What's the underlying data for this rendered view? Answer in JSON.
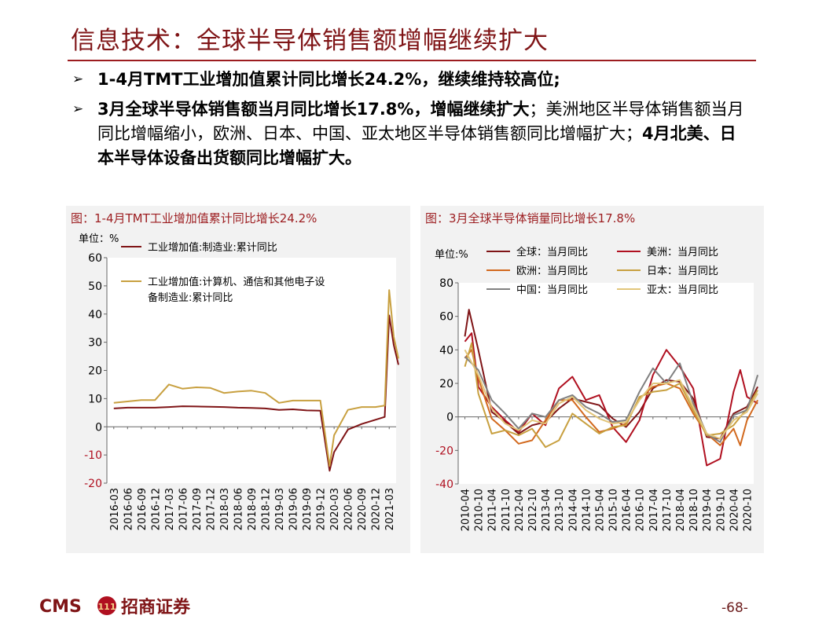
{
  "header": {
    "title": "信息技术：全球半导体销售额增幅继续扩大"
  },
  "bullets": [
    {
      "arrow": "➢",
      "bold1": "1-4月TMT工业增加值累计同比增长24.2%，继续维持较高位;"
    },
    {
      "arrow": "➢",
      "bold1": "3月全球半导体销售额当月同比增长17.8%，增幅继续扩大",
      "normal1": "；美洲地区半导体销售额当月同比增幅缩小，欧洲、日本、中国、亚太地区半导体销售额同比增幅扩大；",
      "bold2": "4月北美、日本半导体设备出货额同比增幅扩大。"
    }
  ],
  "footer": {
    "logo_text": "CMS",
    "logo_mark": "111",
    "company": "招商证券",
    "page": "-68-"
  },
  "colors": {
    "dark_red": "#7f1416",
    "accent_red": "#9c1c1f",
    "gold": "#c8a040",
    "orange": "#d2691e",
    "gray": "#808080",
    "light_gold": "#e2c57a"
  },
  "chart_data": [
    {
      "type": "line",
      "title": "图：1-4月TMT工业增加值累计同比增长24.2%",
      "unit_label": "单位：%",
      "ylim": [
        -20,
        60
      ],
      "yticks": [
        -20,
        -10,
        0,
        10,
        20,
        30,
        40,
        50,
        60
      ],
      "x_tick_labels": [
        "2016-03",
        "2016-06",
        "2016-09",
        "2016-12",
        "2017-03",
        "2017-06",
        "2017-09",
        "2017-12",
        "2018-03",
        "2018-06",
        "2018-09",
        "2018-12",
        "2019-03",
        "2019-06",
        "2019-09",
        "2019-12",
        "2020-03",
        "2020-06",
        "2020-09",
        "2020-12",
        "2021-03"
      ],
      "legend_placement": "top-left",
      "series": [
        {
          "name": "工业增加值:制造业:累计同比",
          "color": "#7f1416",
          "points": [
            [
              0,
              6.5
            ],
            [
              1,
              6.8
            ],
            [
              2,
              6.8
            ],
            [
              3,
              6.8
            ],
            [
              4,
              7.0
            ],
            [
              5,
              7.3
            ],
            [
              6,
              7.2
            ],
            [
              7,
              7.1
            ],
            [
              8,
              7.0
            ],
            [
              9,
              6.8
            ],
            [
              10,
              6.7
            ],
            [
              11,
              6.5
            ],
            [
              12,
              6.0
            ],
            [
              13,
              6.2
            ],
            [
              14,
              5.8
            ],
            [
              15,
              5.7
            ],
            [
              15.67,
              -15.6
            ],
            [
              16,
              -9.0
            ],
            [
              17,
              -1.0
            ],
            [
              18,
              1.0
            ],
            [
              19,
              2.5
            ],
            [
              19.67,
              3.5
            ],
            [
              20,
              39.5
            ],
            [
              20.33,
              29.0
            ],
            [
              20.67,
              22.0
            ]
          ]
        },
        {
          "name": "工业增加值:计算机、通信和其他电子设备制造业:累计同比",
          "color": "#c8a040",
          "points": [
            [
              0,
              8.5
            ],
            [
              1,
              9.0
            ],
            [
              2,
              9.5
            ],
            [
              3,
              9.5
            ],
            [
              4,
              15.0
            ],
            [
              5,
              13.5
            ],
            [
              6,
              14.0
            ],
            [
              7,
              13.8
            ],
            [
              8,
              12.0
            ],
            [
              9,
              12.5
            ],
            [
              10,
              12.8
            ],
            [
              11,
              12.0
            ],
            [
              12,
              8.5
            ],
            [
              13,
              9.3
            ],
            [
              14,
              9.3
            ],
            [
              15,
              9.3
            ],
            [
              15.67,
              -13.9
            ],
            [
              16,
              -3.0
            ],
            [
              17,
              6.0
            ],
            [
              18,
              7.0
            ],
            [
              19,
              7.0
            ],
            [
              19.67,
              7.5
            ],
            [
              20,
              48.5
            ],
            [
              20.33,
              32.0
            ],
            [
              20.67,
              24.2
            ]
          ]
        }
      ]
    },
    {
      "type": "line",
      "title": "图：3月全球半导体销量同比增长17.8%",
      "unit_label": "单位:%",
      "ylim": [
        -40,
        80
      ],
      "yticks": [
        -40,
        -20,
        0,
        20,
        40,
        60,
        80
      ],
      "x_tick_labels": [
        "2010-04",
        "2010-10",
        "2011-04",
        "2011-10",
        "2012-04",
        "2012-10",
        "2013-04",
        "2013-10",
        "2014-04",
        "2014-10",
        "2015-04",
        "2015-10",
        "2016-04",
        "2016-10",
        "2017-04",
        "2017-10",
        "2018-04",
        "2018-10",
        "2019-04",
        "2019-10",
        "2020-04",
        "2020-10"
      ],
      "legend_placement": "top",
      "series": [
        {
          "name": "全球：当月同比",
          "color": "#7f1416",
          "points": [
            [
              0,
              48
            ],
            [
              0.3,
              64
            ],
            [
              1,
              40
            ],
            [
              2,
              3
            ],
            [
              3,
              -3
            ],
            [
              4,
              -10
            ],
            [
              5,
              -5
            ],
            [
              6,
              -3
            ],
            [
              7,
              5
            ],
            [
              8,
              11
            ],
            [
              9,
              9
            ],
            [
              10,
              7
            ],
            [
              11,
              -1
            ],
            [
              12,
              -6
            ],
            [
              13,
              3
            ],
            [
              14,
              17
            ],
            [
              15,
              22
            ],
            [
              16,
              21
            ],
            [
              17,
              11
            ],
            [
              18,
              -12
            ],
            [
              19,
              -13
            ],
            [
              20,
              2
            ],
            [
              21,
              6
            ],
            [
              21.8,
              18
            ]
          ]
        },
        {
          "name": "美洲：当月同比",
          "color": "#b01020",
          "points": [
            [
              0,
              45
            ],
            [
              0.5,
              50
            ],
            [
              1,
              18
            ],
            [
              2,
              6
            ],
            [
              3,
              -2
            ],
            [
              4,
              -9
            ],
            [
              5,
              2
            ],
            [
              6,
              -5
            ],
            [
              7,
              17
            ],
            [
              8,
              24
            ],
            [
              9,
              10
            ],
            [
              10,
              13
            ],
            [
              11,
              -6
            ],
            [
              12,
              -15
            ],
            [
              13,
              -2
            ],
            [
              14,
              25
            ],
            [
              15,
              40
            ],
            [
              16,
              30
            ],
            [
              17,
              17
            ],
            [
              18,
              -29
            ],
            [
              19,
              -25
            ],
            [
              20,
              15
            ],
            [
              20.5,
              28
            ],
            [
              21,
              12
            ],
            [
              21.8,
              8
            ]
          ]
        },
        {
          "name": "欧洲：当月同比",
          "color": "#d2691e",
          "points": [
            [
              0,
              35
            ],
            [
              0.5,
              40
            ],
            [
              1,
              23
            ],
            [
              2,
              -1
            ],
            [
              3,
              -8
            ],
            [
              4,
              -16
            ],
            [
              5,
              -14
            ],
            [
              6,
              -2
            ],
            [
              7,
              10
            ],
            [
              8,
              10
            ],
            [
              9,
              0
            ],
            [
              10,
              -9
            ],
            [
              11,
              -7
            ],
            [
              12,
              -4
            ],
            [
              13,
              11
            ],
            [
              14,
              18
            ],
            [
              15,
              20
            ],
            [
              16,
              17
            ],
            [
              17,
              2
            ],
            [
              18,
              -10
            ],
            [
              19,
              -17
            ],
            [
              20,
              -7
            ],
            [
              20.5,
              -17
            ],
            [
              21,
              -2
            ],
            [
              21.8,
              10
            ]
          ]
        },
        {
          "name": "日本：当月同比",
          "color": "#c8a040",
          "points": [
            [
              0,
              30
            ],
            [
              0.5,
              44
            ],
            [
              1,
              14
            ],
            [
              2,
              -10
            ],
            [
              3,
              -8
            ],
            [
              4,
              -11
            ],
            [
              5,
              -7
            ],
            [
              6,
              -18
            ],
            [
              7,
              -14
            ],
            [
              8,
              2
            ],
            [
              9,
              -4
            ],
            [
              10,
              -10
            ],
            [
              11,
              -6
            ],
            [
              12,
              -5
            ],
            [
              13,
              12
            ],
            [
              14,
              15
            ],
            [
              15,
              16
            ],
            [
              16,
              20
            ],
            [
              17,
              4
            ],
            [
              18,
              -11
            ],
            [
              19,
              -10
            ],
            [
              20,
              -5
            ],
            [
              21,
              5
            ],
            [
              21.8,
              16
            ]
          ]
        },
        {
          "name": "中国：当月同比",
          "color": "#808080",
          "points": [
            [
              0,
              36
            ],
            [
              1,
              28
            ],
            [
              2,
              10
            ],
            [
              3,
              2
            ],
            [
              4,
              -7
            ],
            [
              5,
              2
            ],
            [
              6,
              0
            ],
            [
              7,
              10
            ],
            [
              8,
              13
            ],
            [
              9,
              6
            ],
            [
              10,
              2
            ],
            [
              11,
              -3
            ],
            [
              12,
              -2
            ],
            [
              13,
              15
            ],
            [
              14,
              29
            ],
            [
              15,
              20
            ],
            [
              16,
              32
            ],
            [
              17,
              8
            ],
            [
              18,
              -10
            ],
            [
              19,
              -15
            ],
            [
              20,
              1
            ],
            [
              21,
              4
            ],
            [
              21.8,
              25
            ]
          ]
        },
        {
          "name": "亚太：当月同比",
          "color": "#e2c57a",
          "points": [
            [
              0,
              40
            ],
            [
              1,
              25
            ],
            [
              2,
              5
            ],
            [
              3,
              -4
            ],
            [
              4,
              -8
            ],
            [
              5,
              -2
            ],
            [
              6,
              -4
            ],
            [
              7,
              8
            ],
            [
              8,
              12
            ],
            [
              9,
              4
            ],
            [
              10,
              -1
            ],
            [
              11,
              -4
            ],
            [
              12,
              -3
            ],
            [
              13,
              10
            ],
            [
              14,
              20
            ],
            [
              15,
              20
            ],
            [
              16,
              22
            ],
            [
              17,
              6
            ],
            [
              18,
              -10
            ],
            [
              19,
              -13
            ],
            [
              20,
              -2
            ],
            [
              21,
              3
            ],
            [
              21.8,
              14
            ]
          ]
        }
      ]
    }
  ]
}
